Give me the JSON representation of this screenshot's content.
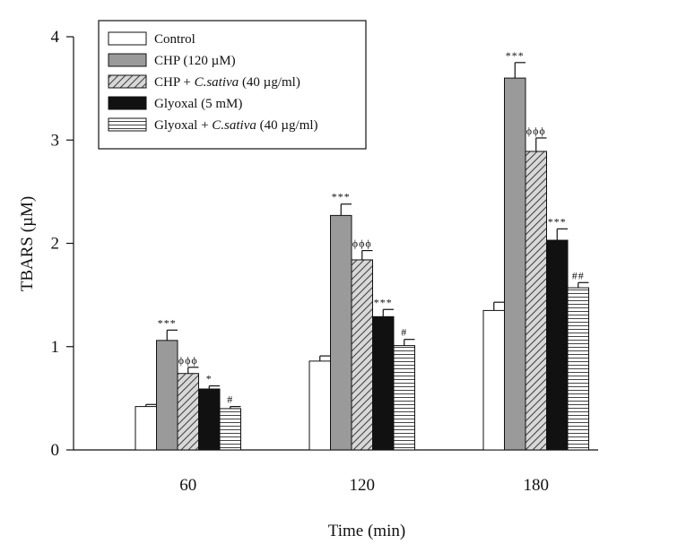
{
  "chart_data": {
    "type": "bar",
    "xlabel": "Time (min)",
    "ylabel": "TBARS (µM)",
    "ylim": [
      0,
      4
    ],
    "yticks": [
      0,
      1,
      2,
      3,
      4
    ],
    "categories": [
      "60",
      "120",
      "180"
    ],
    "legend_position": "top-left",
    "series": [
      {
        "name": "Control",
        "legend_main": "Control",
        "legend_italic": "",
        "legend_tail": "",
        "fill": "#ffffff",
        "pattern": "none",
        "values": [
          0.42,
          0.86,
          1.35
        ],
        "errors": [
          0.02,
          0.05,
          0.08
        ],
        "annotations": [
          "",
          "",
          ""
        ]
      },
      {
        "name": "CHP (120 µM)",
        "legend_main": "CHP (120 µM)",
        "legend_italic": "",
        "legend_tail": "",
        "fill": "#9a9a9a",
        "pattern": "none",
        "values": [
          1.06,
          2.27,
          3.6
        ],
        "errors": [
          0.1,
          0.11,
          0.15
        ],
        "annotations": [
          "***",
          "***",
          "***"
        ]
      },
      {
        "name": "CHP + C.sativa (40 µg/ml)",
        "legend_main": "CHP + ",
        "legend_italic": "C.sativa",
        "legend_tail": " (40 µg/ml)",
        "fill": "#d8d8d8",
        "pattern": "diagonal",
        "values": [
          0.74,
          1.84,
          2.89
        ],
        "errors": [
          0.06,
          0.09,
          0.13
        ],
        "annotations": [
          "ϕϕϕ",
          "ϕϕϕ",
          "ϕϕϕ"
        ]
      },
      {
        "name": "Glyoxal (5 mM)",
        "legend_main": "Glyoxal (5 mM)",
        "legend_italic": "",
        "legend_tail": "",
        "fill": "#111111",
        "pattern": "none",
        "values": [
          0.59,
          1.29,
          2.03
        ],
        "errors": [
          0.03,
          0.07,
          0.11
        ],
        "annotations": [
          "*",
          "***",
          "***"
        ]
      },
      {
        "name": "Glyoxal + C.sativa (40 µg/ml)",
        "legend_main": "Glyoxal + ",
        "legend_italic": "C.sativa",
        "legend_tail": " (40 µg/ml)",
        "fill": "#ffffff",
        "pattern": "horizontal",
        "values": [
          0.4,
          1.01,
          1.57
        ],
        "errors": [
          0.02,
          0.06,
          0.05
        ],
        "annotations": [
          "#",
          "#",
          "##"
        ]
      }
    ]
  }
}
